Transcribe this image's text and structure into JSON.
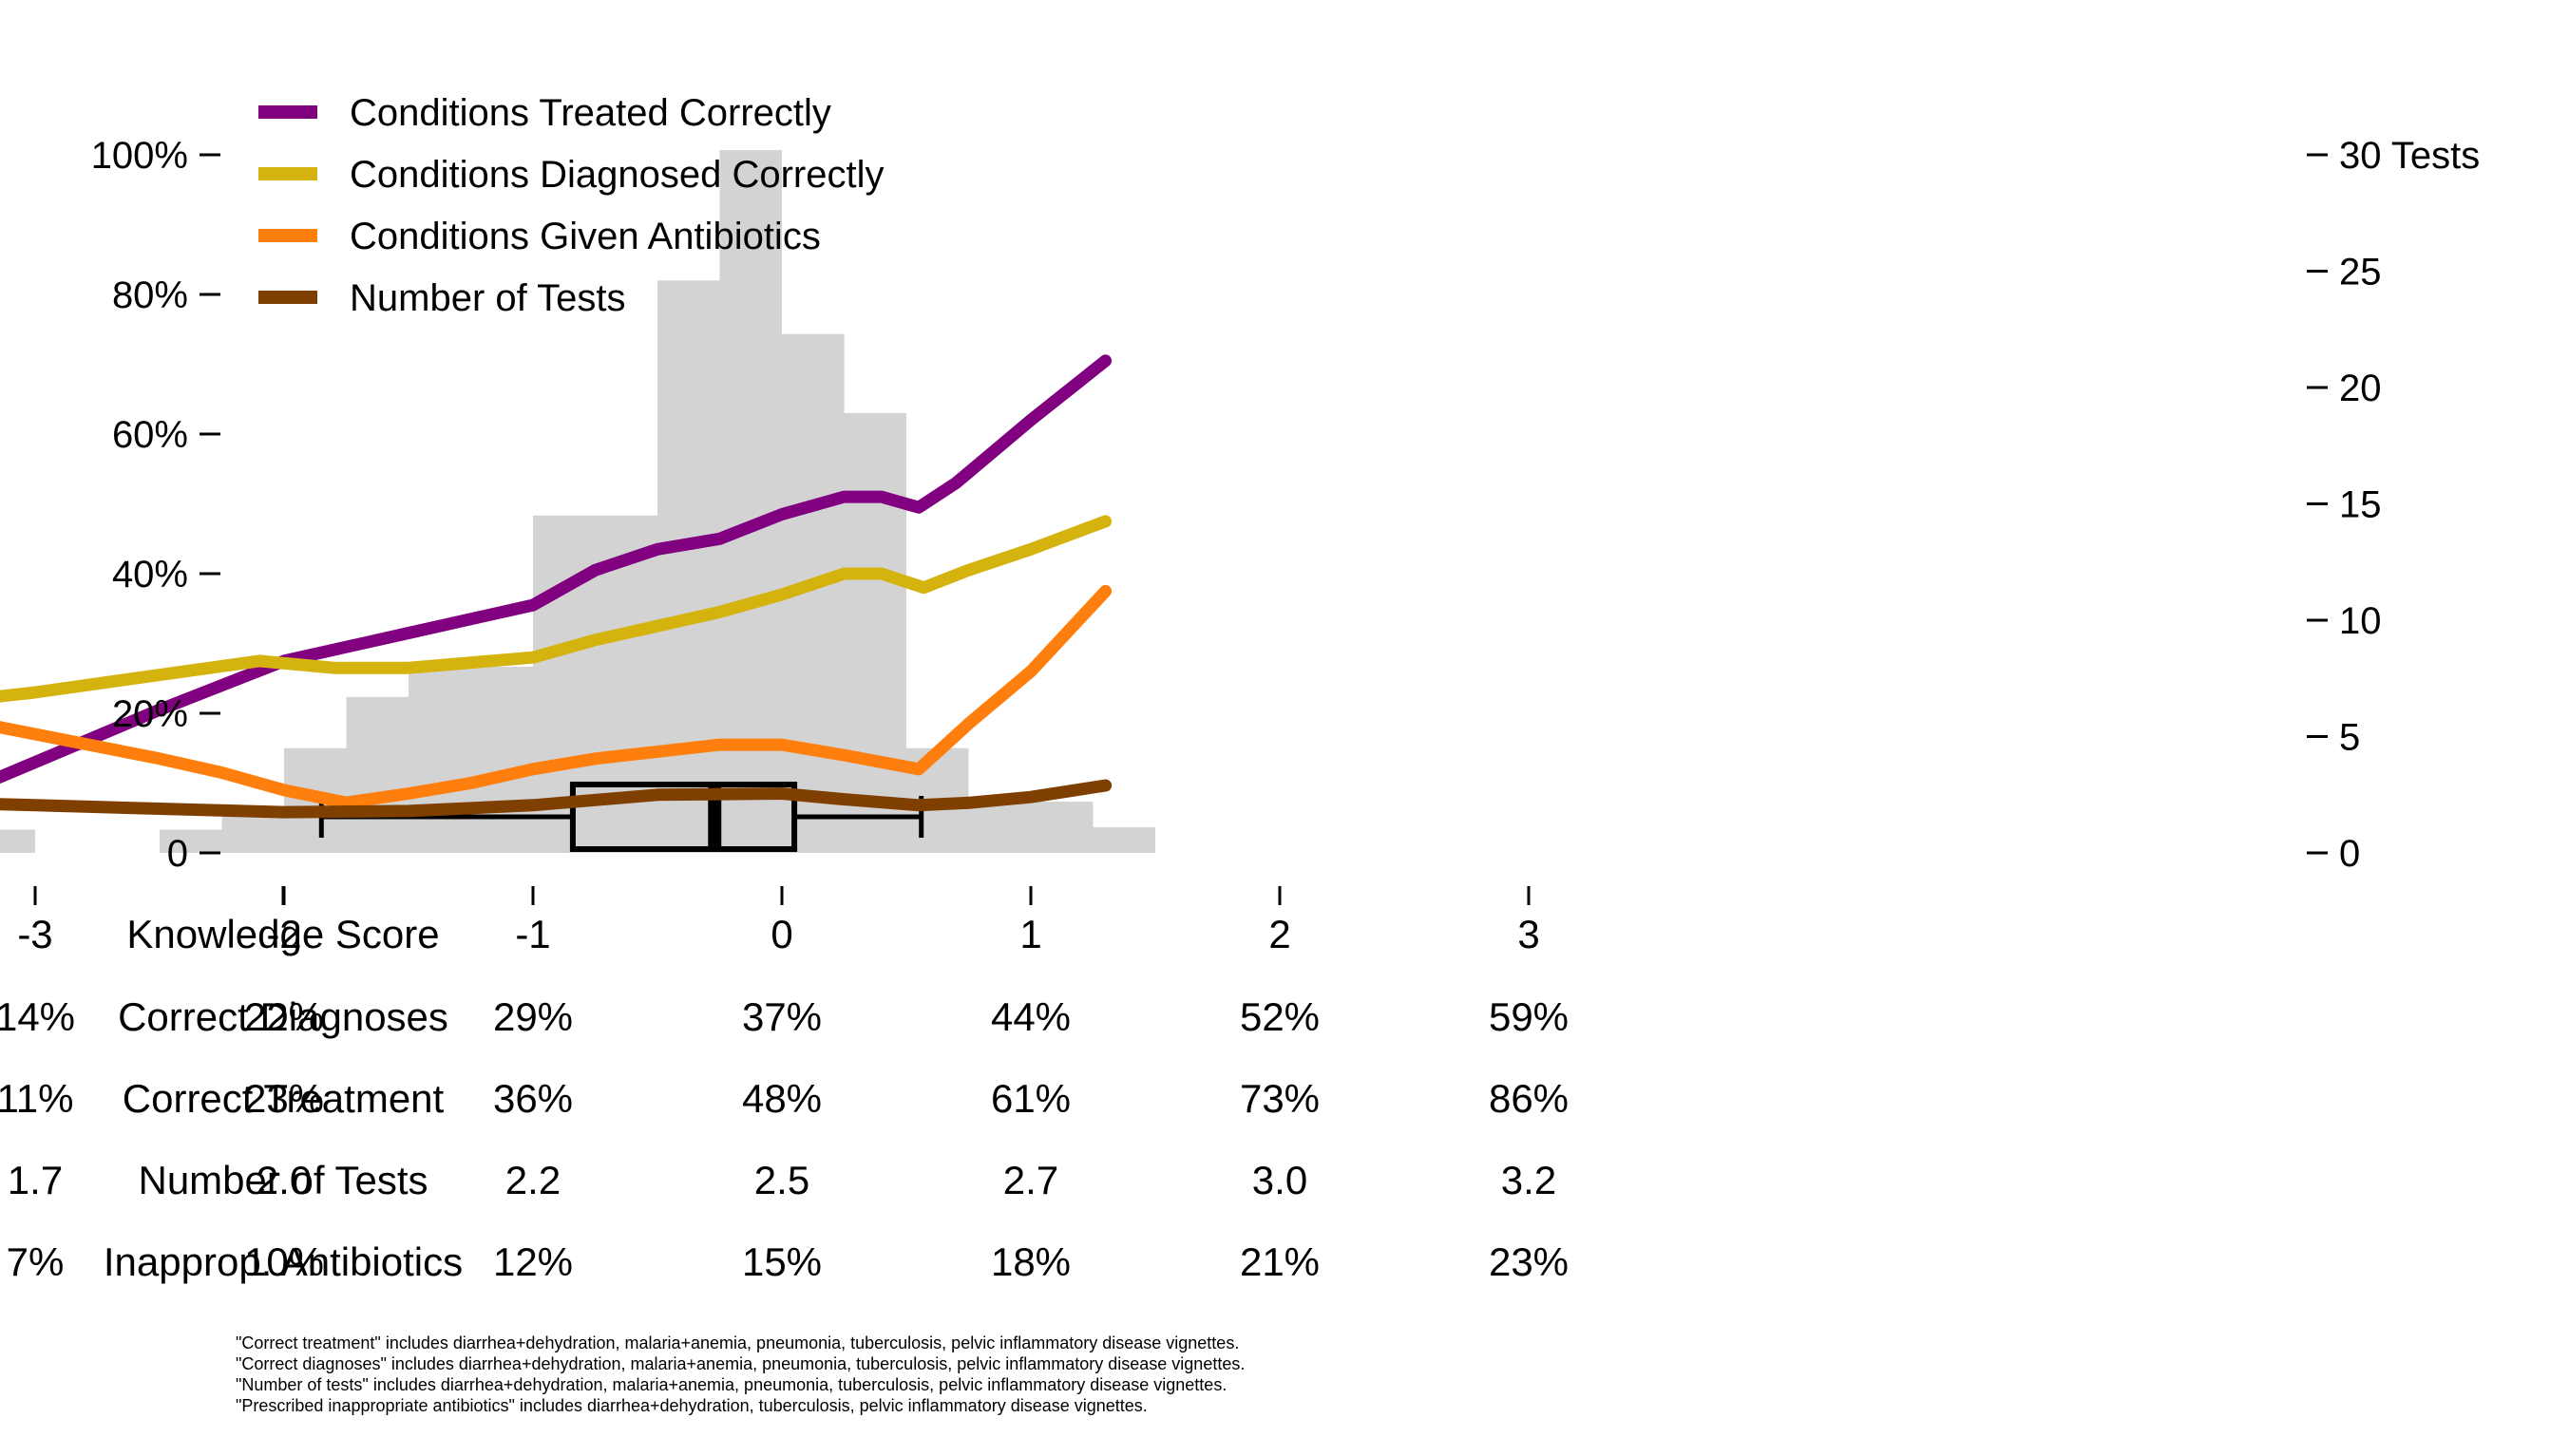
{
  "chart_data": {
    "type": "line",
    "x_label": "Knowledge Score",
    "x_ticks": [
      -3,
      -2,
      -1,
      0,
      1,
      2,
      3
    ],
    "x_range": [
      -4.0,
      3.0
    ],
    "y_left": {
      "range": [
        0,
        100
      ],
      "ticks": [
        0,
        20,
        40,
        60,
        80,
        100
      ],
      "tick_labels": [
        "0",
        "20%",
        "40%",
        "60%",
        "80%",
        "100%"
      ]
    },
    "y_right": {
      "range": [
        0,
        30
      ],
      "ticks": [
        0,
        5,
        10,
        15,
        20,
        25,
        30
      ],
      "tick_labels": [
        "0",
        "5",
        "10",
        "15",
        "20",
        "25",
        "30 Tests"
      ]
    },
    "legend_position": "top-left",
    "legend": [
      {
        "label": "Conditions Treated Correctly",
        "color": "#800080"
      },
      {
        "label": "Conditions Diagnosed Correctly",
        "color": "#d4b30f"
      },
      {
        "label": "Conditions Given Antibiotics",
        "color": "#ff7f0e"
      },
      {
        "label": "Number of Tests",
        "color": "#7f3f00"
      }
    ],
    "histogram": {
      "color": "#d3d3d3",
      "bins": [
        {
          "x0": -3.5,
          "x1": -3.0,
          "count": 1
        },
        {
          "x0": -2.5,
          "x1": -2.25,
          "count": 1
        },
        {
          "x0": -2.25,
          "x1": -2.0,
          "count": 2
        },
        {
          "x0": -2.0,
          "x1": -1.75,
          "count": 4.5
        },
        {
          "x0": -1.75,
          "x1": -1.5,
          "count": 6.7
        },
        {
          "x0": -1.5,
          "x1": -1.0,
          "count": 8
        },
        {
          "x0": -1.0,
          "x1": -0.5,
          "count": 14.5
        },
        {
          "x0": -0.5,
          "x1": -0.25,
          "count": 24.6
        },
        {
          "x0": -0.25,
          "x1": 0.0,
          "count": 30.2
        },
        {
          "x0": 0.0,
          "x1": 0.25,
          "count": 22.3
        },
        {
          "x0": 0.25,
          "x1": 0.5,
          "count": 18.9
        },
        {
          "x0": 0.5,
          "x1": 0.75,
          "count": 4.5
        },
        {
          "x0": 0.75,
          "x1": 1.25,
          "count": 2.2
        },
        {
          "x0": 1.25,
          "x1": 1.5,
          "count": 1.1
        }
      ]
    },
    "boxplot": {
      "whisker_low": -1.85,
      "q1": -0.84,
      "median": -0.27,
      "q3": 0.05,
      "whisker_high": 0.56
    },
    "series": [
      {
        "name": "Conditions Treated Correctly",
        "axis": "left",
        "color": "#800080",
        "x": [
          -3.5,
          -3.0,
          -2.5,
          -2.0,
          -1.5,
          -1.0,
          -0.75,
          -0.5,
          -0.25,
          0.0,
          0.25,
          0.4,
          0.55,
          0.7,
          1.0,
          1.3
        ],
        "y": [
          5.5,
          13,
          20.5,
          27.5,
          31.5,
          35.5,
          40.5,
          43.5,
          45,
          48.5,
          51,
          51,
          49.5,
          53,
          62,
          70.5
        ]
      },
      {
        "name": "Conditions Diagnosed Correctly",
        "axis": "left",
        "color": "#d4b30f",
        "x": [
          -3.5,
          -3.0,
          -2.5,
          -2.1,
          -1.8,
          -1.5,
          -1.0,
          -0.75,
          -0.5,
          -0.25,
          0.0,
          0.25,
          0.4,
          0.57,
          0.75,
          1.0,
          1.3
        ],
        "y": [
          21,
          23,
          25.5,
          27.5,
          26.5,
          26.5,
          28,
          30.5,
          32.5,
          34.5,
          37,
          40,
          40,
          38,
          40.5,
          43.5,
          47.5
        ]
      },
      {
        "name": "Conditions Given Antibiotics",
        "axis": "left",
        "color": "#ff7f0e",
        "x": [
          -3.5,
          -3.0,
          -2.5,
          -2.25,
          -2.0,
          -1.75,
          -1.5,
          -1.25,
          -1.0,
          -0.75,
          -0.5,
          -0.25,
          0.0,
          0.25,
          0.55,
          0.75,
          1.0,
          1.3
        ],
        "y": [
          20.5,
          17,
          13.5,
          11.5,
          9,
          7.2,
          8.5,
          10,
          12,
          13.5,
          14.5,
          15.5,
          15.5,
          14,
          12,
          18.5,
          26,
          37.5
        ]
      },
      {
        "name": "Number of Tests",
        "axis": "right",
        "color": "#7f3f00",
        "x": [
          -3.5,
          -3.0,
          -2.5,
          -2.0,
          -1.5,
          -1.0,
          -0.5,
          0.0,
          0.25,
          0.55,
          0.75,
          1.0,
          1.3
        ],
        "y": [
          2.2,
          2.05,
          1.9,
          1.75,
          1.8,
          2.05,
          2.5,
          2.55,
          2.3,
          2.05,
          2.15,
          2.4,
          2.9
        ]
      }
    ],
    "table": {
      "columns": [
        "-3",
        "-2",
        "-1",
        "0",
        "1",
        "2",
        "3"
      ],
      "rows": [
        {
          "label": "Correct Diagnoses",
          "values": [
            "14%",
            "22%",
            "29%",
            "37%",
            "44%",
            "52%",
            "59%"
          ]
        },
        {
          "label": "Correct Treatment",
          "values": [
            "11%",
            "23%",
            "36%",
            "48%",
            "61%",
            "73%",
            "86%"
          ]
        },
        {
          "label": "Number of Tests",
          "values": [
            "1.7",
            "2.0",
            "2.2",
            "2.5",
            "2.7",
            "3.0",
            "3.2"
          ]
        },
        {
          "label": "Inapprop. Antibiotics",
          "values": [
            "7%",
            "10%",
            "12%",
            "15%",
            "18%",
            "21%",
            "23%"
          ]
        }
      ]
    },
    "footnotes": [
      "\"Correct treatment\" includes diarrhea+dehydration, malaria+anemia, pneumonia, tuberculosis, pelvic inflammatory disease vignettes.",
      "\"Correct diagnoses\" includes diarrhea+dehydration, malaria+anemia, pneumonia, tuberculosis, pelvic inflammatory disease vignettes.",
      "\"Number of tests\" includes diarrhea+dehydration, malaria+anemia, pneumonia, tuberculosis, pelvic inflammatory disease vignettes.",
      "\"Prescribed inappropriate antibiotics\" includes diarrhea+dehydration, tuberculosis, pelvic inflammatory disease vignettes."
    ]
  }
}
